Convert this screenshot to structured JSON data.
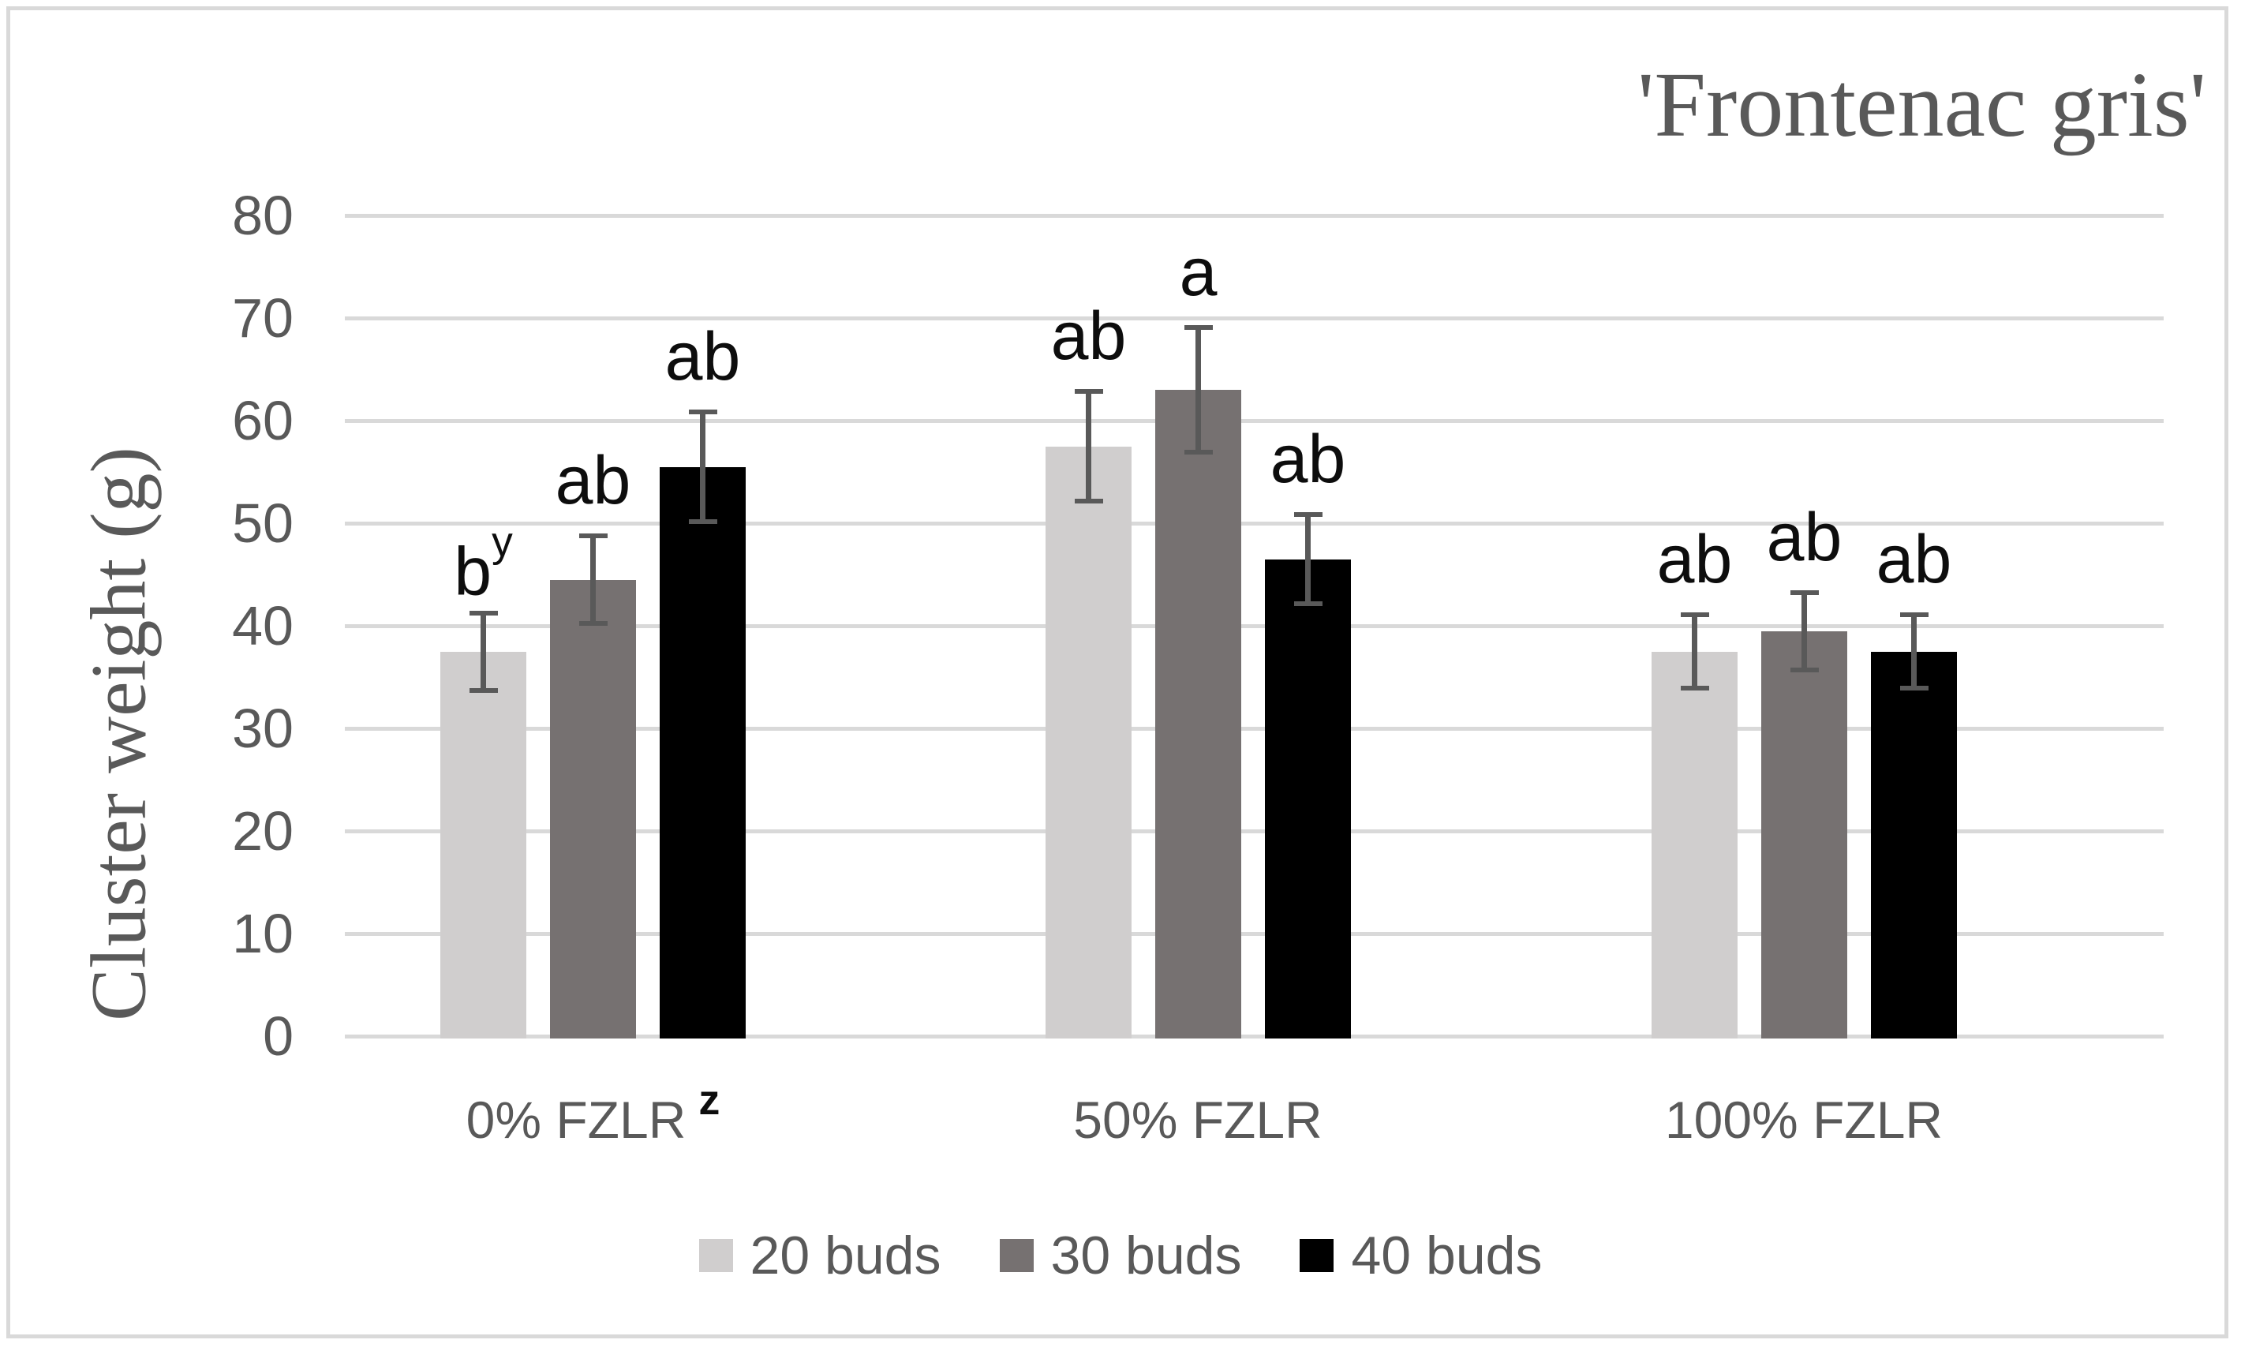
{
  "title": "'Frontenac gris'",
  "y_axis_title": "Cluster weight (g)",
  "chart_data": {
    "type": "bar",
    "title": "'Frontenac gris'",
    "xlabel": "",
    "ylabel": "Cluster weight (g)",
    "ylim": [
      0,
      80
    ],
    "yticks": [
      0,
      10,
      20,
      30,
      40,
      50,
      60,
      70,
      80
    ],
    "grid": true,
    "legend_position": "bottom",
    "categories": [
      {
        "label": "0% FZLR",
        "sup": "z"
      },
      {
        "label": "50% FZLR",
        "sup": ""
      },
      {
        "label": "100% FZLR",
        "sup": ""
      }
    ],
    "series": [
      {
        "name": "20 buds",
        "color": "#d0cece",
        "values": [
          37.5,
          57.5,
          37.5
        ],
        "errors": [
          4.0,
          5.6,
          3.8
        ],
        "letters": [
          {
            "label": "b",
            "sup": "y"
          },
          {
            "label": "ab",
            "sup": ""
          },
          {
            "label": "ab",
            "sup": ""
          }
        ]
      },
      {
        "name": "30 buds",
        "color": "#767171",
        "values": [
          44.5,
          63.0,
          39.5
        ],
        "errors": [
          4.5,
          6.3,
          4.0
        ],
        "letters": [
          {
            "label": "ab",
            "sup": ""
          },
          {
            "label": "a",
            "sup": ""
          },
          {
            "label": "ab",
            "sup": ""
          }
        ]
      },
      {
        "name": "40 buds",
        "color": "#000000",
        "values": [
          55.5,
          46.5,
          37.5
        ],
        "errors": [
          5.6,
          4.6,
          3.8
        ],
        "letters": [
          {
            "label": "ab",
            "sup": ""
          },
          {
            "label": "ab",
            "sup": ""
          },
          {
            "label": "ab",
            "sup": ""
          }
        ]
      }
    ]
  },
  "colors": {
    "text": "#595959",
    "gridline": "#d9d9d9",
    "error_bar": "#595959",
    "letter": "#0d0d0d",
    "border": "#d9d9d9",
    "background": "#ffffff"
  }
}
